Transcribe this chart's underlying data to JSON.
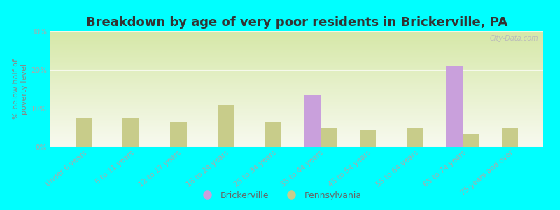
{
  "categories": [
    "Under 6 years",
    "6 to 11 years",
    "12 to 17 years",
    "18 to 24 years",
    "25 to 34 years",
    "35 to 44 years",
    "45 to 54 years",
    "55 to 64 years",
    "65 to 74 years",
    "75 years and over"
  ],
  "brickerville": [
    0,
    0,
    0,
    0,
    0,
    13.5,
    0,
    0,
    21.0,
    0
  ],
  "pennsylvania": [
    7.5,
    7.5,
    6.5,
    11.0,
    6.5,
    5.0,
    4.5,
    5.0,
    3.5,
    5.0
  ],
  "brickerville_color": "#c9a0dc",
  "pennsylvania_color": "#c8cc8a",
  "background_color": "#00ffff",
  "grad_top_color": "#d6e8a8",
  "grad_bottom_color": "#f8faf0",
  "title": "Breakdown by age of very poor residents in Brickerville, PA",
  "ylabel": "% below half of\npoverty level",
  "ylim": [
    0,
    30
  ],
  "yticks": [
    0,
    10,
    20,
    30
  ],
  "ytick_labels": [
    "0%",
    "10%",
    "20%",
    "30%"
  ],
  "title_fontsize": 13,
  "axis_fontsize": 8,
  "tick_fontsize": 7.5,
  "bar_width": 0.35,
  "legend_brickerville": "Brickerville",
  "legend_pennsylvania": "Pennsylvania",
  "watermark": "City-Data.com"
}
